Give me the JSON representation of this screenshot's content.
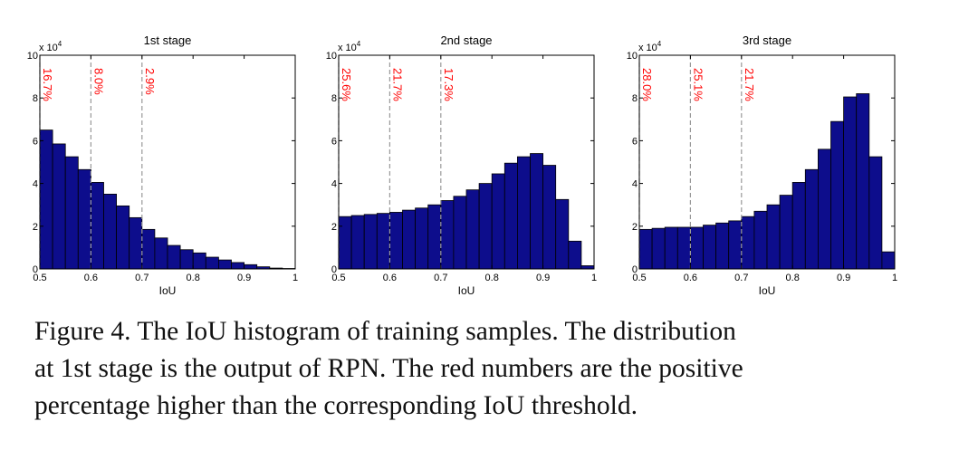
{
  "chart_data": [
    {
      "type": "bar",
      "title": "1st stage",
      "xlabel": "IoU",
      "ylabel": "",
      "y_multiplier_label": "x 10",
      "y_multiplier_exponent": "4",
      "xlim": [
        0.5,
        1.0
      ],
      "ylim": [
        0,
        10
      ],
      "xticks": [
        "0.5",
        "0.6",
        "0.7",
        "0.8",
        "0.9",
        "1"
      ],
      "yticks": [
        "0",
        "2",
        "4",
        "6",
        "8",
        "10"
      ],
      "bin_width": 0.025,
      "bin_starts": [
        0.5,
        0.525,
        0.55,
        0.575,
        0.6,
        0.625,
        0.65,
        0.675,
        0.7,
        0.725,
        0.75,
        0.775,
        0.8,
        0.825,
        0.85,
        0.875,
        0.9,
        0.925,
        0.95,
        0.975
      ],
      "values": [
        6.5,
        5.85,
        5.25,
        4.65,
        4.05,
        3.5,
        2.95,
        2.4,
        1.85,
        1.45,
        1.1,
        0.9,
        0.75,
        0.55,
        0.42,
        0.3,
        0.2,
        0.1,
        0.04,
        0.02
      ],
      "thresholds": [
        0.5,
        0.6,
        0.7
      ],
      "threshold_labels": [
        "16.7%",
        "8.0%",
        "2.9%"
      ],
      "bar_color": "#0d0d8c",
      "threshold_label_color": "#ff0000",
      "threshold_line_color": "#999999"
    },
    {
      "type": "bar",
      "title": "2nd stage",
      "xlabel": "IoU",
      "ylabel": "",
      "y_multiplier_label": "x 10",
      "y_multiplier_exponent": "4",
      "xlim": [
        0.5,
        1.0
      ],
      "ylim": [
        0,
        10
      ],
      "xticks": [
        "0.5",
        "0.6",
        "0.7",
        "0.8",
        "0.9",
        "1"
      ],
      "yticks": [
        "0",
        "2",
        "4",
        "6",
        "8",
        "10"
      ],
      "bin_width": 0.025,
      "bin_starts": [
        0.5,
        0.525,
        0.55,
        0.575,
        0.6,
        0.625,
        0.65,
        0.675,
        0.7,
        0.725,
        0.75,
        0.775,
        0.8,
        0.825,
        0.85,
        0.875,
        0.9,
        0.925,
        0.95,
        0.975
      ],
      "values": [
        2.45,
        2.5,
        2.55,
        2.6,
        2.65,
        2.75,
        2.85,
        3.0,
        3.2,
        3.4,
        3.7,
        4.0,
        4.45,
        4.95,
        5.25,
        5.4,
        4.85,
        3.25,
        1.3,
        0.15
      ],
      "thresholds": [
        0.5,
        0.6,
        0.7
      ],
      "threshold_labels": [
        "25.6%",
        "21.7%",
        "17.3%"
      ],
      "bar_color": "#0d0d8c",
      "threshold_label_color": "#ff0000",
      "threshold_line_color": "#999999"
    },
    {
      "type": "bar",
      "title": "3rd stage",
      "xlabel": "IoU",
      "ylabel": "",
      "y_multiplier_label": "x 10",
      "y_multiplier_exponent": "4",
      "xlim": [
        0.5,
        1.0
      ],
      "ylim": [
        0,
        10
      ],
      "xticks": [
        "0.5",
        "0.6",
        "0.7",
        "0.8",
        "0.9",
        "1"
      ],
      "yticks": [
        "0",
        "2",
        "4",
        "6",
        "8",
        "10"
      ],
      "bin_width": 0.025,
      "bin_starts": [
        0.5,
        0.525,
        0.55,
        0.575,
        0.6,
        0.625,
        0.65,
        0.675,
        0.7,
        0.725,
        0.75,
        0.775,
        0.8,
        0.825,
        0.85,
        0.875,
        0.9,
        0.925,
        0.95,
        0.975
      ],
      "values": [
        1.85,
        1.9,
        1.95,
        1.95,
        1.95,
        2.05,
        2.15,
        2.25,
        2.45,
        2.7,
        3.0,
        3.45,
        4.05,
        4.65,
        5.6,
        6.9,
        8.05,
        8.2,
        5.25,
        0.8
      ],
      "thresholds": [
        0.5,
        0.6,
        0.7
      ],
      "threshold_labels": [
        "28.0%",
        "25.1%",
        "21.7%"
      ],
      "bar_color": "#0d0d8c",
      "threshold_label_color": "#ff0000",
      "threshold_line_color": "#999999"
    }
  ],
  "caption": {
    "lines": [
      "Figure 4. The IoU histogram of training samples. The distribution",
      "at 1st stage is the output of RPN. The red numbers are the positive",
      "percentage higher than the corresponding IoU threshold."
    ]
  }
}
